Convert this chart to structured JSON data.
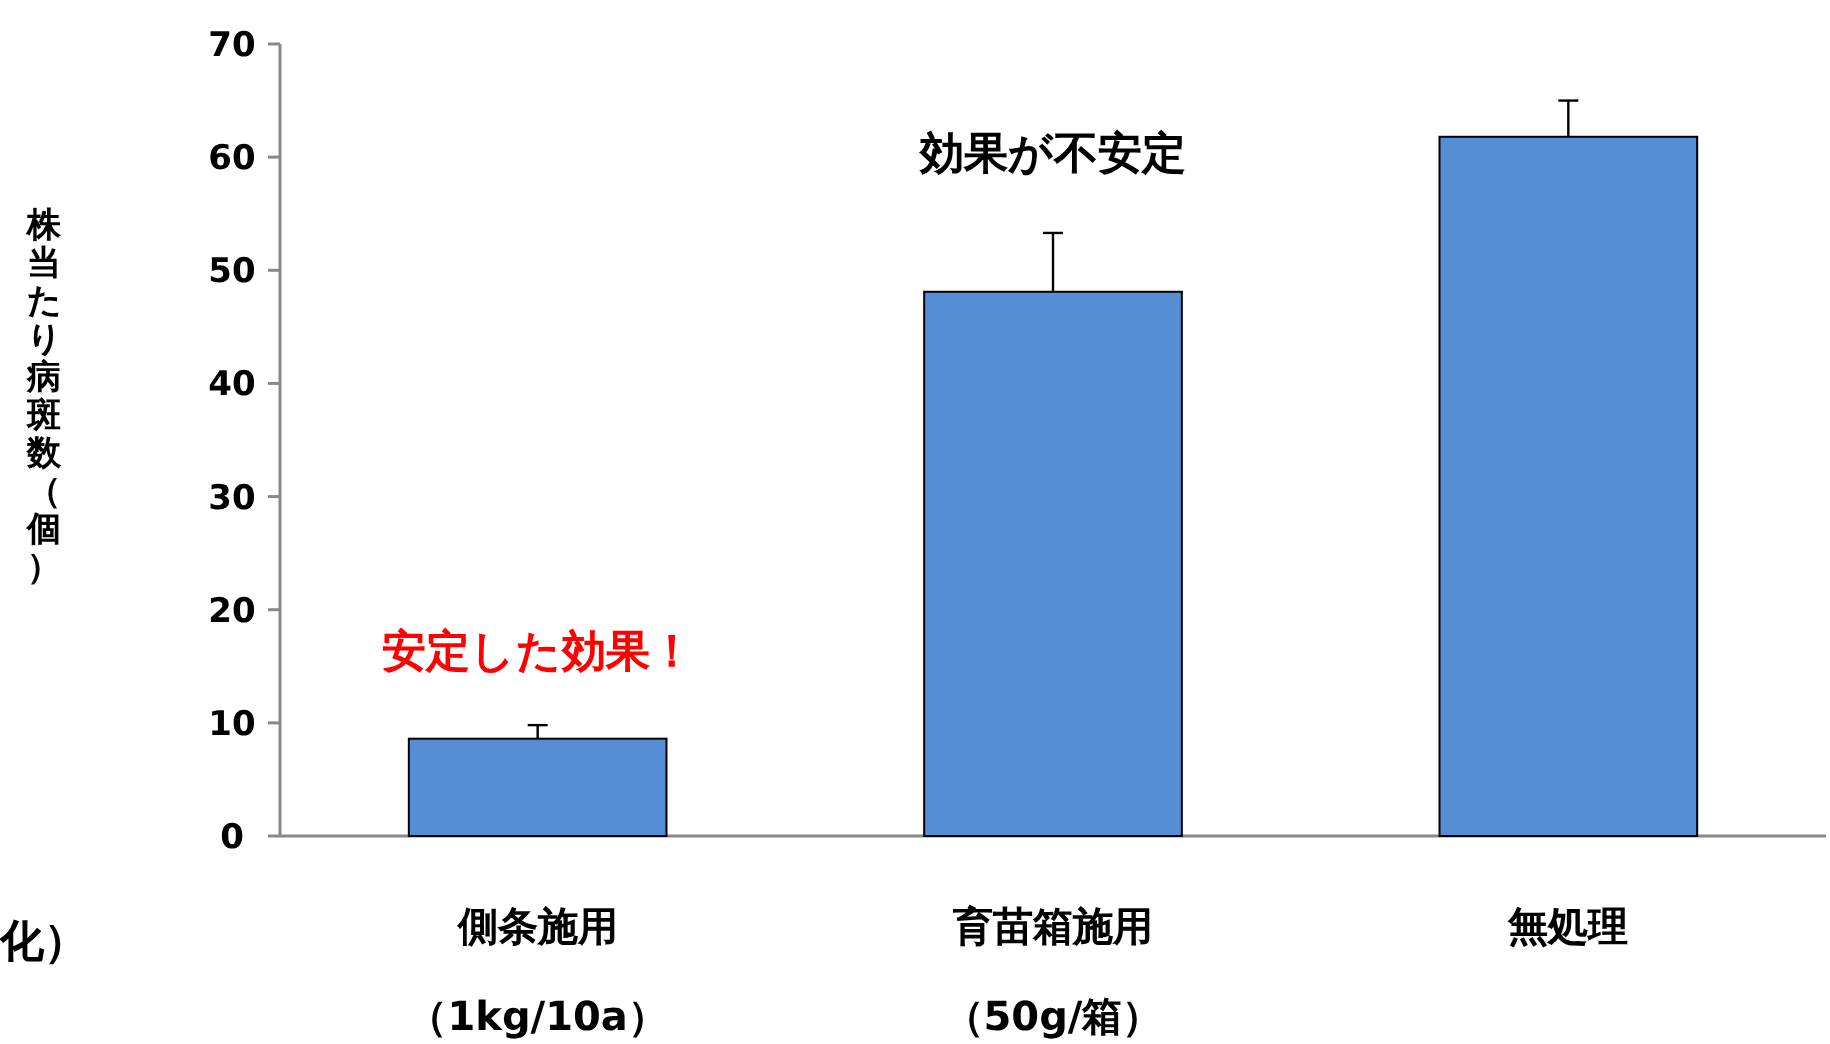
{
  "chart_data": {
    "type": "bar",
    "ylabel": "株当たり病斑数（個）",
    "categories": [
      "側条施用",
      "育苗箱施用",
      "無処理"
    ],
    "values": [
      8.6,
      48.1,
      61.8
    ],
    "errors": [
      [
        8.6,
        9.8
      ],
      [
        48.1,
        53.3
      ],
      [
        61.8,
        65.0
      ]
    ],
    "color": "#558ed5",
    "ylim": [
      0,
      70
    ],
    "yticks": [
      0,
      10,
      20,
      30,
      40,
      50,
      60,
      70
    ],
    "annotations": [
      "効果が不安定",
      "安定した効果！",
      "（1kg/10a）",
      "（50g/箱）",
      "化）"
    ]
  }
}
